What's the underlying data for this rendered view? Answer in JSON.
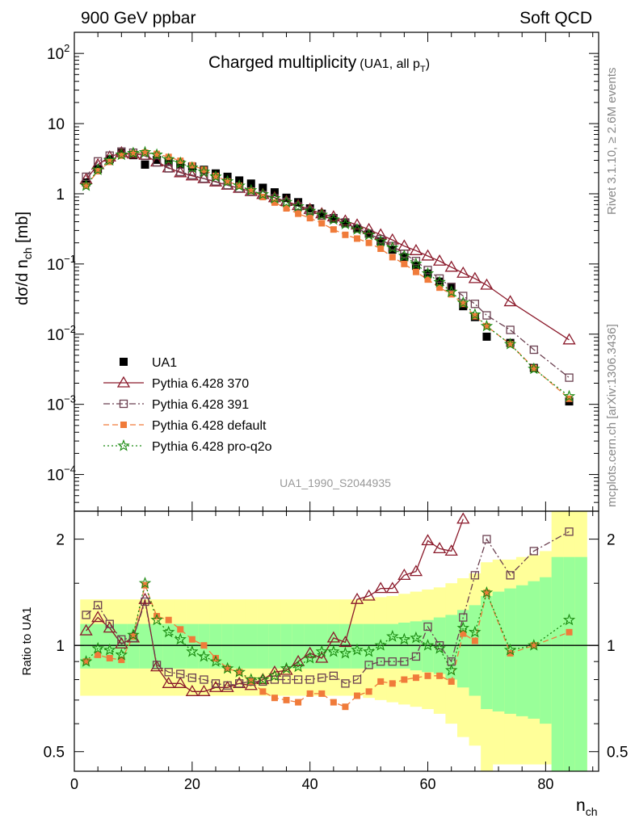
{
  "header": {
    "left": "900 GeV ppbar",
    "right": "Soft QCD"
  },
  "side": {
    "rivet": "Rivet 3.1.10, ≥ 2.6M events",
    "mcplots": "mcplots.cern.ch [arXiv:1306.3436]"
  },
  "plot": {
    "title_main": "Charged multiplicity",
    "title_sub": "(UA1, all p",
    "title_sub_T": "T",
    "title_sub_close": ")",
    "watermark": "UA1_1990_S2044935",
    "ylabel_main_prefix": "dσ/d n",
    "ylabel_main_sub": "ch",
    "ylabel_main_suffix": " [mb]",
    "ylabel_ratio": "Ratio to UA1",
    "xlabel": "n",
    "xlabel_sub": "ch"
  },
  "legend": [
    {
      "label": "UA1",
      "style": "data"
    },
    {
      "label": "Pythia 6.428 370",
      "style": "s370"
    },
    {
      "label": "Pythia 6.428 391",
      "style": "s391"
    },
    {
      "label": "Pythia 6.428 default",
      "style": "sdef"
    },
    {
      "label": "Pythia 6.428 pro-q2o",
      "style": "sq2o"
    }
  ],
  "colors": {
    "data": "#000000",
    "s370": "#8b1a2b",
    "s391": "#6b4050",
    "sdef": "#f07b3a",
    "sq2o": "#1a8a10",
    "band_inner": "#99ff99",
    "band_outer": "#ffff99"
  },
  "chart_data": {
    "type": "scatter",
    "x_axis": {
      "range": [
        0,
        89
      ],
      "ticks": [
        0,
        20,
        40,
        60,
        80
      ],
      "tick_labels": [
        "0",
        "20",
        "40",
        "60",
        "80"
      ]
    },
    "y_axis_main": {
      "scale": "log",
      "range": [
        3e-05,
        200
      ],
      "tick_values": [
        0.0001,
        0.001,
        0.01,
        0.1,
        1,
        10,
        100
      ],
      "tick_labels": [
        [
          "10",
          "−4"
        ],
        [
          "10",
          "−3"
        ],
        [
          "10",
          "−2"
        ],
        [
          "10",
          "−1"
        ],
        [
          "1",
          ""
        ],
        [
          "10",
          ""
        ],
        [
          "10",
          "2"
        ]
      ]
    },
    "y_axis_ratio": {
      "scale": "log",
      "range": [
        0.44,
        2.4
      ],
      "tick_values": [
        0.5,
        1,
        2
      ],
      "tick_labels": [
        "0.5",
        "1",
        "2"
      ]
    },
    "series": [
      {
        "name": "UA1",
        "style": "data",
        "x": [
          2,
          4,
          6,
          8,
          10,
          12,
          14,
          16,
          18,
          20,
          22,
          24,
          26,
          28,
          30,
          32,
          34,
          36,
          38,
          40,
          42,
          44,
          46,
          48,
          50,
          52,
          54,
          56,
          58,
          60,
          62,
          64,
          66,
          68,
          70,
          74,
          78,
          84
        ],
        "values": [
          1.45,
          2.25,
          3.1,
          3.85,
          3.55,
          2.6,
          3.05,
          2.85,
          2.65,
          2.45,
          2.2,
          1.95,
          1.75,
          1.55,
          1.4,
          1.22,
          1.05,
          0.88,
          0.76,
          0.62,
          0.52,
          0.45,
          0.39,
          0.32,
          0.27,
          0.21,
          0.16,
          0.125,
          0.095,
          0.073,
          0.056,
          0.047,
          0.025,
          0.0175,
          0.0092,
          0.0075,
          0.0033,
          0.0011
        ]
      },
      {
        "name": "Pythia 6.428 370",
        "style": "s370",
        "x": [
          2,
          4,
          6,
          8,
          10,
          12,
          14,
          16,
          18,
          20,
          22,
          24,
          26,
          28,
          30,
          32,
          34,
          36,
          38,
          40,
          42,
          44,
          46,
          48,
          50,
          52,
          54,
          56,
          58,
          60,
          62,
          64,
          66,
          68,
          70,
          74,
          84
        ],
        "values": [
          1.6,
          2.6,
          3.35,
          3.85,
          3.7,
          3.55,
          2.85,
          2.35,
          2.0,
          1.8,
          1.65,
          1.48,
          1.33,
          1.2,
          1.08,
          0.98,
          0.88,
          0.78,
          0.68,
          0.6,
          0.52,
          0.47,
          0.41,
          0.36,
          0.31,
          0.26,
          0.22,
          0.18,
          0.155,
          0.13,
          0.11,
          0.09,
          0.074,
          0.062,
          0.05,
          0.029,
          0.0083
        ]
      },
      {
        "name": "Pythia 6.428 391",
        "style": "s391",
        "x": [
          2,
          4,
          6,
          8,
          10,
          12,
          14,
          16,
          18,
          20,
          22,
          24,
          26,
          28,
          30,
          32,
          34,
          36,
          38,
          40,
          42,
          44,
          46,
          48,
          50,
          52,
          54,
          56,
          58,
          60,
          62,
          64,
          66,
          68,
          70,
          74,
          78,
          84
        ],
        "values": [
          1.75,
          2.9,
          3.5,
          4.0,
          3.85,
          3.45,
          2.8,
          2.3,
          2.05,
          1.85,
          1.65,
          1.5,
          1.33,
          1.2,
          1.08,
          0.96,
          0.86,
          0.76,
          0.66,
          0.57,
          0.49,
          0.44,
          0.38,
          0.32,
          0.27,
          0.225,
          0.18,
          0.14,
          0.11,
          0.082,
          0.062,
          0.047,
          0.035,
          0.027,
          0.0185,
          0.0115,
          0.006,
          0.0024
        ]
      },
      {
        "name": "Pythia 6.428 default",
        "style": "sdef",
        "x": [
          2,
          4,
          6,
          8,
          10,
          12,
          14,
          16,
          18,
          20,
          22,
          24,
          26,
          28,
          30,
          32,
          34,
          36,
          38,
          40,
          42,
          44,
          46,
          48,
          50,
          52,
          54,
          56,
          58,
          60,
          62,
          64,
          66,
          68,
          70,
          74,
          78,
          84
        ],
        "values": [
          1.3,
          2.1,
          2.85,
          3.5,
          3.75,
          3.85,
          3.7,
          3.35,
          2.95,
          2.55,
          2.2,
          1.8,
          1.5,
          1.3,
          1.1,
          0.9,
          0.75,
          0.62,
          0.52,
          0.45,
          0.38,
          0.31,
          0.26,
          0.23,
          0.2,
          0.165,
          0.125,
          0.1,
          0.077,
          0.06,
          0.046,
          0.037,
          0.027,
          0.018,
          0.013,
          0.0072,
          0.0033,
          0.0012
        ]
      },
      {
        "name": "Pythia 6.428 pro-q2o",
        "style": "sq2o",
        "x": [
          2,
          4,
          6,
          8,
          10,
          12,
          14,
          16,
          18,
          20,
          22,
          24,
          26,
          28,
          30,
          32,
          34,
          36,
          38,
          40,
          42,
          44,
          46,
          48,
          50,
          52,
          54,
          56,
          58,
          60,
          62,
          64,
          66,
          68,
          70,
          74,
          78,
          84
        ],
        "values": [
          1.3,
          2.2,
          3.0,
          3.6,
          3.8,
          3.9,
          3.6,
          3.1,
          2.75,
          2.35,
          2.05,
          1.75,
          1.5,
          1.3,
          1.12,
          0.98,
          0.86,
          0.76,
          0.66,
          0.57,
          0.5,
          0.43,
          0.37,
          0.31,
          0.26,
          0.21,
          0.17,
          0.13,
          0.1,
          0.073,
          0.055,
          0.04,
          0.028,
          0.019,
          0.013,
          0.0072,
          0.0032,
          0.0013
        ]
      }
    ],
    "ratio_series": [
      {
        "name": "Pythia 6.428 370",
        "style": "s370",
        "x": [
          2,
          4,
          6,
          8,
          10,
          12,
          14,
          16,
          18,
          20,
          22,
          24,
          26,
          28,
          30,
          32,
          34,
          36,
          38,
          40,
          42,
          44,
          46,
          48,
          50,
          52,
          54,
          56,
          58,
          60,
          62,
          64,
          66
        ],
        "values": [
          1.1,
          1.2,
          1.12,
          1.01,
          1.05,
          1.35,
          0.87,
          0.78,
          0.78,
          0.74,
          0.74,
          0.76,
          0.76,
          0.78,
          0.77,
          0.8,
          0.84,
          0.85,
          0.9,
          0.95,
          0.92,
          1.05,
          1.02,
          1.35,
          1.38,
          1.45,
          1.45,
          1.58,
          1.62,
          1.98,
          1.88,
          1.85,
          2.28
        ]
      },
      {
        "name": "Pythia 6.428 391",
        "style": "s391",
        "x": [
          2,
          4,
          6,
          8,
          10,
          12,
          14,
          16,
          18,
          20,
          22,
          24,
          26,
          28,
          30,
          32,
          34,
          36,
          38,
          40,
          42,
          44,
          46,
          48,
          50,
          52,
          54,
          56,
          58,
          60,
          62,
          64,
          66,
          68,
          70,
          74,
          78,
          84
        ],
        "values": [
          1.22,
          1.3,
          1.15,
          1.04,
          1.05,
          1.33,
          0.88,
          0.84,
          0.83,
          0.81,
          0.8,
          0.78,
          0.77,
          0.78,
          0.79,
          0.79,
          0.8,
          0.8,
          0.8,
          0.8,
          0.81,
          0.82,
          0.78,
          0.8,
          0.88,
          0.9,
          0.9,
          0.9,
          0.93,
          1.13,
          1.0,
          0.9,
          1.2,
          1.58,
          2.0,
          1.58,
          1.85,
          2.1
        ]
      },
      {
        "name": "Pythia 6.428 default",
        "style": "sdef",
        "x": [
          2,
          4,
          6,
          8,
          10,
          12,
          14,
          16,
          18,
          20,
          22,
          24,
          26,
          28,
          30,
          32,
          34,
          36,
          38,
          40,
          42,
          44,
          46,
          48,
          50,
          52,
          54,
          56,
          58,
          60,
          62,
          64,
          66,
          68,
          70,
          74,
          78,
          84
        ],
        "values": [
          0.9,
          0.94,
          0.92,
          0.91,
          1.06,
          1.48,
          1.21,
          1.18,
          1.11,
          1.04,
          1.0,
          0.92,
          0.86,
          0.84,
          0.79,
          0.74,
          0.71,
          0.7,
          0.69,
          0.73,
          0.73,
          0.69,
          0.67,
          0.72,
          0.74,
          0.79,
          0.78,
          0.8,
          0.81,
          0.82,
          0.82,
          0.79,
          1.08,
          1.03,
          1.41,
          0.95,
          1.0,
          1.09
        ]
      },
      {
        "name": "Pythia 6.428 pro-q2o",
        "style": "sq2o",
        "x": [
          2,
          4,
          6,
          8,
          10,
          12,
          14,
          16,
          18,
          20,
          22,
          24,
          26,
          28,
          30,
          32,
          34,
          36,
          38,
          40,
          42,
          44,
          46,
          48,
          50,
          52,
          54,
          56,
          58,
          60,
          62,
          64,
          66,
          68,
          70,
          74,
          78,
          84
        ],
        "values": [
          0.9,
          0.98,
          0.97,
          0.94,
          1.07,
          1.5,
          1.18,
          1.09,
          1.04,
          0.96,
          0.93,
          0.9,
          0.86,
          0.84,
          0.8,
          0.8,
          0.82,
          0.86,
          0.87,
          0.92,
          0.96,
          0.96,
          0.95,
          0.97,
          0.96,
          1.0,
          1.06,
          1.04,
          1.05,
          1.0,
          0.98,
          0.85,
          1.12,
          1.09,
          1.41,
          0.97,
          1.0,
          1.18
        ]
      }
    ],
    "bands": {
      "x_edges": [
        1,
        3,
        5,
        7,
        9,
        11,
        13,
        15,
        17,
        19,
        21,
        23,
        25,
        27,
        29,
        31,
        33,
        35,
        37,
        39,
        41,
        43,
        45,
        47,
        49,
        51,
        53,
        55,
        57,
        59,
        61,
        63,
        65,
        67,
        69,
        71,
        73,
        75,
        77,
        79,
        81,
        83,
        85,
        87
      ],
      "outer_lo": [
        0.72,
        0.72,
        0.72,
        0.72,
        0.72,
        0.72,
        0.72,
        0.72,
        0.72,
        0.72,
        0.72,
        0.72,
        0.72,
        0.72,
        0.72,
        0.72,
        0.72,
        0.72,
        0.72,
        0.72,
        0.72,
        0.72,
        0.72,
        0.72,
        0.71,
        0.7,
        0.69,
        0.68,
        0.67,
        0.66,
        0.64,
        0.6,
        0.55,
        0.52,
        0.44,
        0.46,
        0.46,
        0.46,
        0.46,
        0.46,
        0.44,
        0.44,
        0.44
      ],
      "outer_hi": [
        1.35,
        1.35,
        1.35,
        1.35,
        1.35,
        1.35,
        1.35,
        1.35,
        1.35,
        1.35,
        1.35,
        1.35,
        1.35,
        1.35,
        1.35,
        1.35,
        1.35,
        1.35,
        1.35,
        1.35,
        1.35,
        1.35,
        1.35,
        1.35,
        1.36,
        1.37,
        1.38,
        1.4,
        1.42,
        1.44,
        1.46,
        1.5,
        1.55,
        1.6,
        1.72,
        1.75,
        1.75,
        1.78,
        1.8,
        1.85,
        2.4,
        2.4,
        2.4
      ],
      "inner_lo": [
        0.86,
        0.86,
        0.86,
        0.86,
        0.86,
        0.86,
        0.86,
        0.86,
        0.86,
        0.86,
        0.86,
        0.86,
        0.86,
        0.86,
        0.86,
        0.86,
        0.86,
        0.86,
        0.86,
        0.86,
        0.86,
        0.86,
        0.86,
        0.86,
        0.86,
        0.86,
        0.86,
        0.86,
        0.85,
        0.84,
        0.83,
        0.8,
        0.76,
        0.72,
        0.66,
        0.65,
        0.64,
        0.63,
        0.62,
        0.6,
        0.44,
        0.44,
        0.44
      ],
      "inner_hi": [
        1.15,
        1.15,
        1.15,
        1.15,
        1.15,
        1.15,
        1.15,
        1.15,
        1.15,
        1.15,
        1.15,
        1.15,
        1.15,
        1.15,
        1.15,
        1.15,
        1.15,
        1.15,
        1.15,
        1.15,
        1.15,
        1.15,
        1.15,
        1.15,
        1.15,
        1.15,
        1.15,
        1.16,
        1.17,
        1.18,
        1.2,
        1.22,
        1.26,
        1.3,
        1.38,
        1.42,
        1.45,
        1.48,
        1.52,
        1.56,
        1.78,
        1.78,
        1.78
      ]
    }
  }
}
